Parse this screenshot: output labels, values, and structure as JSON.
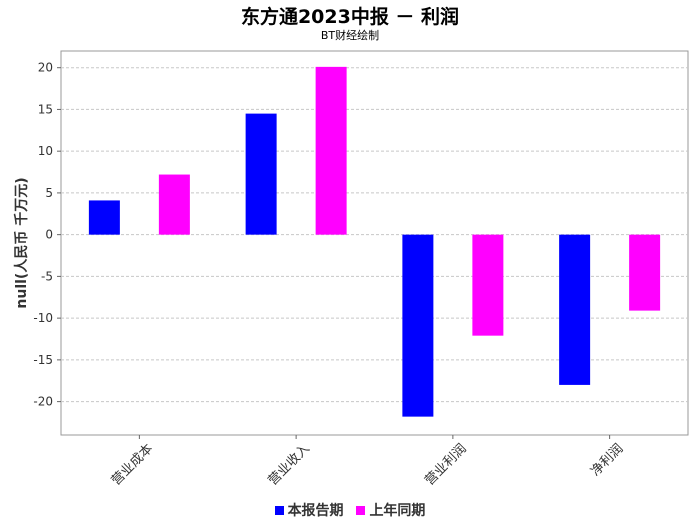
{
  "chart_data": {
    "type": "bar",
    "title": "东方通2023中报 － 利润",
    "subtitle": "BT财经绘制",
    "ylabel": "null(人民币 千万元)",
    "xlabel": "",
    "ylim": [
      -24,
      22
    ],
    "yticks": [
      -20,
      -15,
      -10,
      -5,
      0,
      5,
      10,
      15,
      20
    ],
    "grid": true,
    "legend_position": "bottom",
    "categories": [
      "营业成本",
      "营业收入",
      "营业利润",
      "净利润"
    ],
    "series": [
      {
        "name": "本报告期",
        "color": "#0000ff",
        "values": [
          4.1,
          14.5,
          -21.8,
          -18.0
        ]
      },
      {
        "name": "上年同期",
        "color": "#ff00ff",
        "values": [
          7.2,
          20.1,
          -12.1,
          -9.1
        ]
      }
    ]
  }
}
